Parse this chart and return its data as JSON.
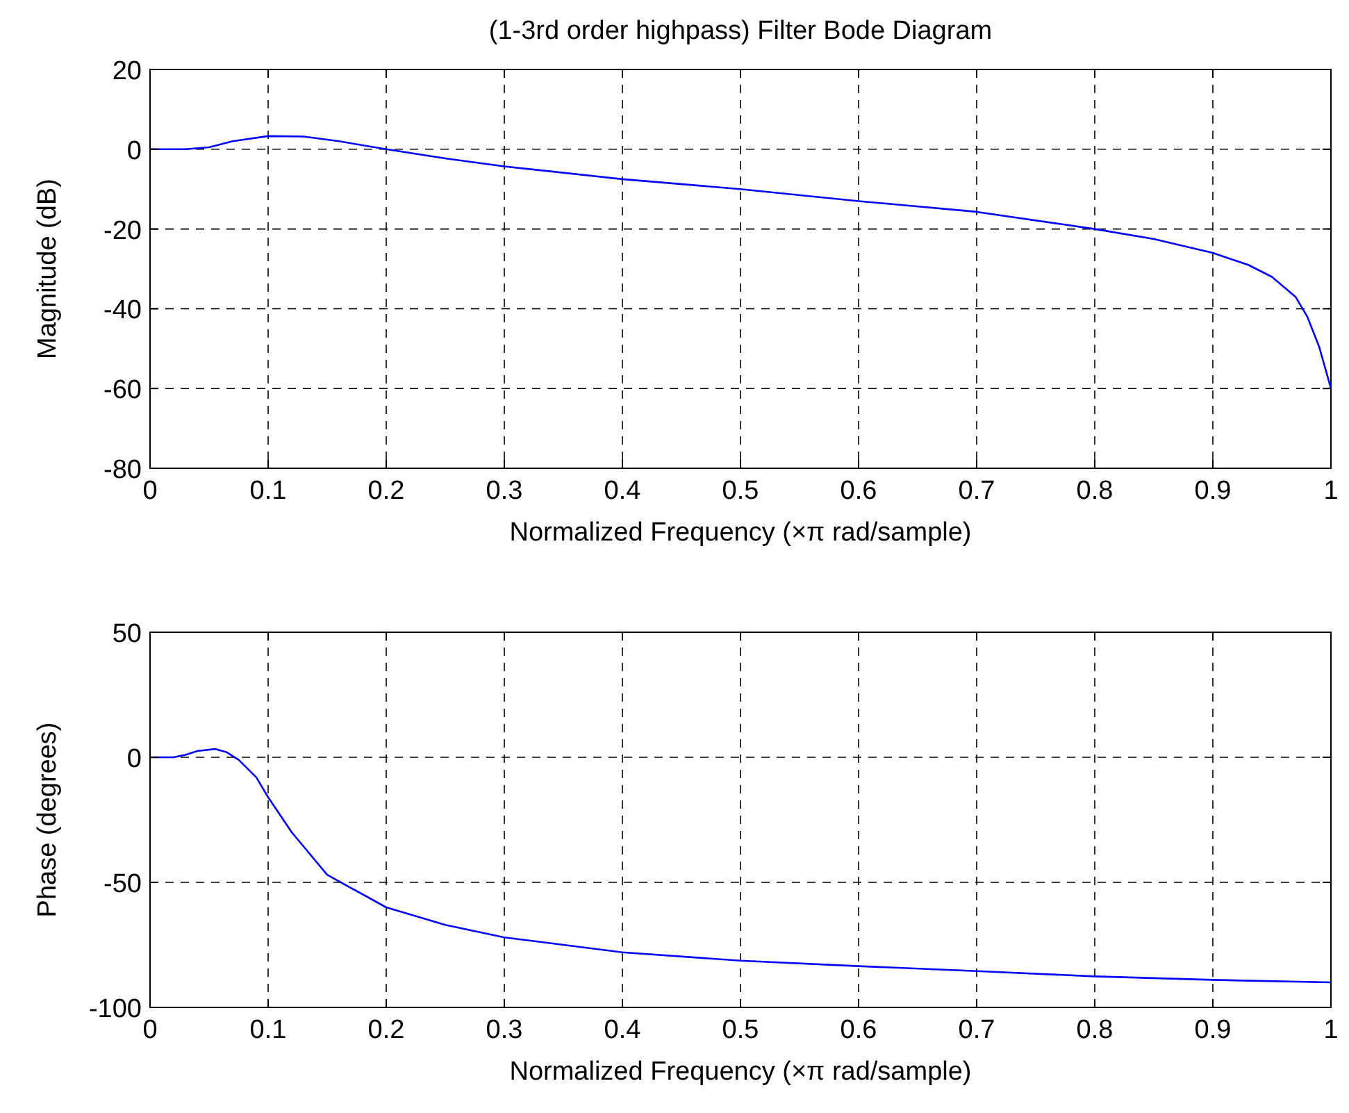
{
  "chart_data": [
    {
      "type": "line",
      "title": "(1-3rd order highpass) Filter Bode Diagram",
      "xlabel": "Normalized Frequency  (×π rad/sample)",
      "ylabel": "Magnitude (dB)",
      "xlim": [
        0,
        1
      ],
      "ylim": [
        -80,
        20
      ],
      "xticks": [
        0,
        0.1,
        0.2,
        0.3,
        0.4,
        0.5,
        0.6,
        0.7,
        0.8,
        0.9,
        1
      ],
      "yticks": [
        -80,
        -60,
        -40,
        -20,
        0,
        20
      ],
      "grid": true,
      "line_style": "solid",
      "marker": "none",
      "series": [
        {
          "color": "#0000ff",
          "x": [
            0,
            0.03,
            0.05,
            0.07,
            0.1,
            0.13,
            0.16,
            0.2,
            0.25,
            0.3,
            0.4,
            0.5,
            0.6,
            0.7,
            0.8,
            0.85,
            0.9,
            0.93,
            0.95,
            0.97,
            0.98,
            0.99,
            1
          ],
          "values": [
            0,
            0,
            0.5,
            2,
            3.3,
            3.2,
            2,
            0,
            -2.3,
            -4.3,
            -7.5,
            -10,
            -13,
            -15.7,
            -20,
            -22.5,
            -26,
            -29,
            -32,
            -37,
            -42,
            -49.5,
            -60
          ]
        }
      ]
    },
    {
      "type": "line",
      "xlabel": "Normalized Frequency  (×π rad/sample)",
      "ylabel": "Phase (degrees)",
      "xlim": [
        0,
        1
      ],
      "ylim": [
        -100,
        50
      ],
      "xticks": [
        0,
        0.1,
        0.2,
        0.3,
        0.4,
        0.5,
        0.6,
        0.7,
        0.8,
        0.9,
        1
      ],
      "yticks": [
        -100,
        -50,
        0,
        50
      ],
      "grid": true,
      "line_style": "solid",
      "marker": "none",
      "series": [
        {
          "color": "#0000ff",
          "x": [
            0,
            0.02,
            0.03,
            0.04,
            0.055,
            0.065,
            0.075,
            0.09,
            0.1,
            0.12,
            0.15,
            0.2,
            0.25,
            0.3,
            0.4,
            0.5,
            0.6,
            0.7,
            0.8,
            0.9,
            1
          ],
          "values": [
            0,
            0,
            1,
            2.5,
            3.3,
            2,
            -1,
            -8,
            -16,
            -30,
            -47,
            -60,
            -67,
            -72,
            -78,
            -81.3,
            -83.5,
            -85.5,
            -87.6,
            -89,
            -90
          ]
        }
      ]
    }
  ]
}
